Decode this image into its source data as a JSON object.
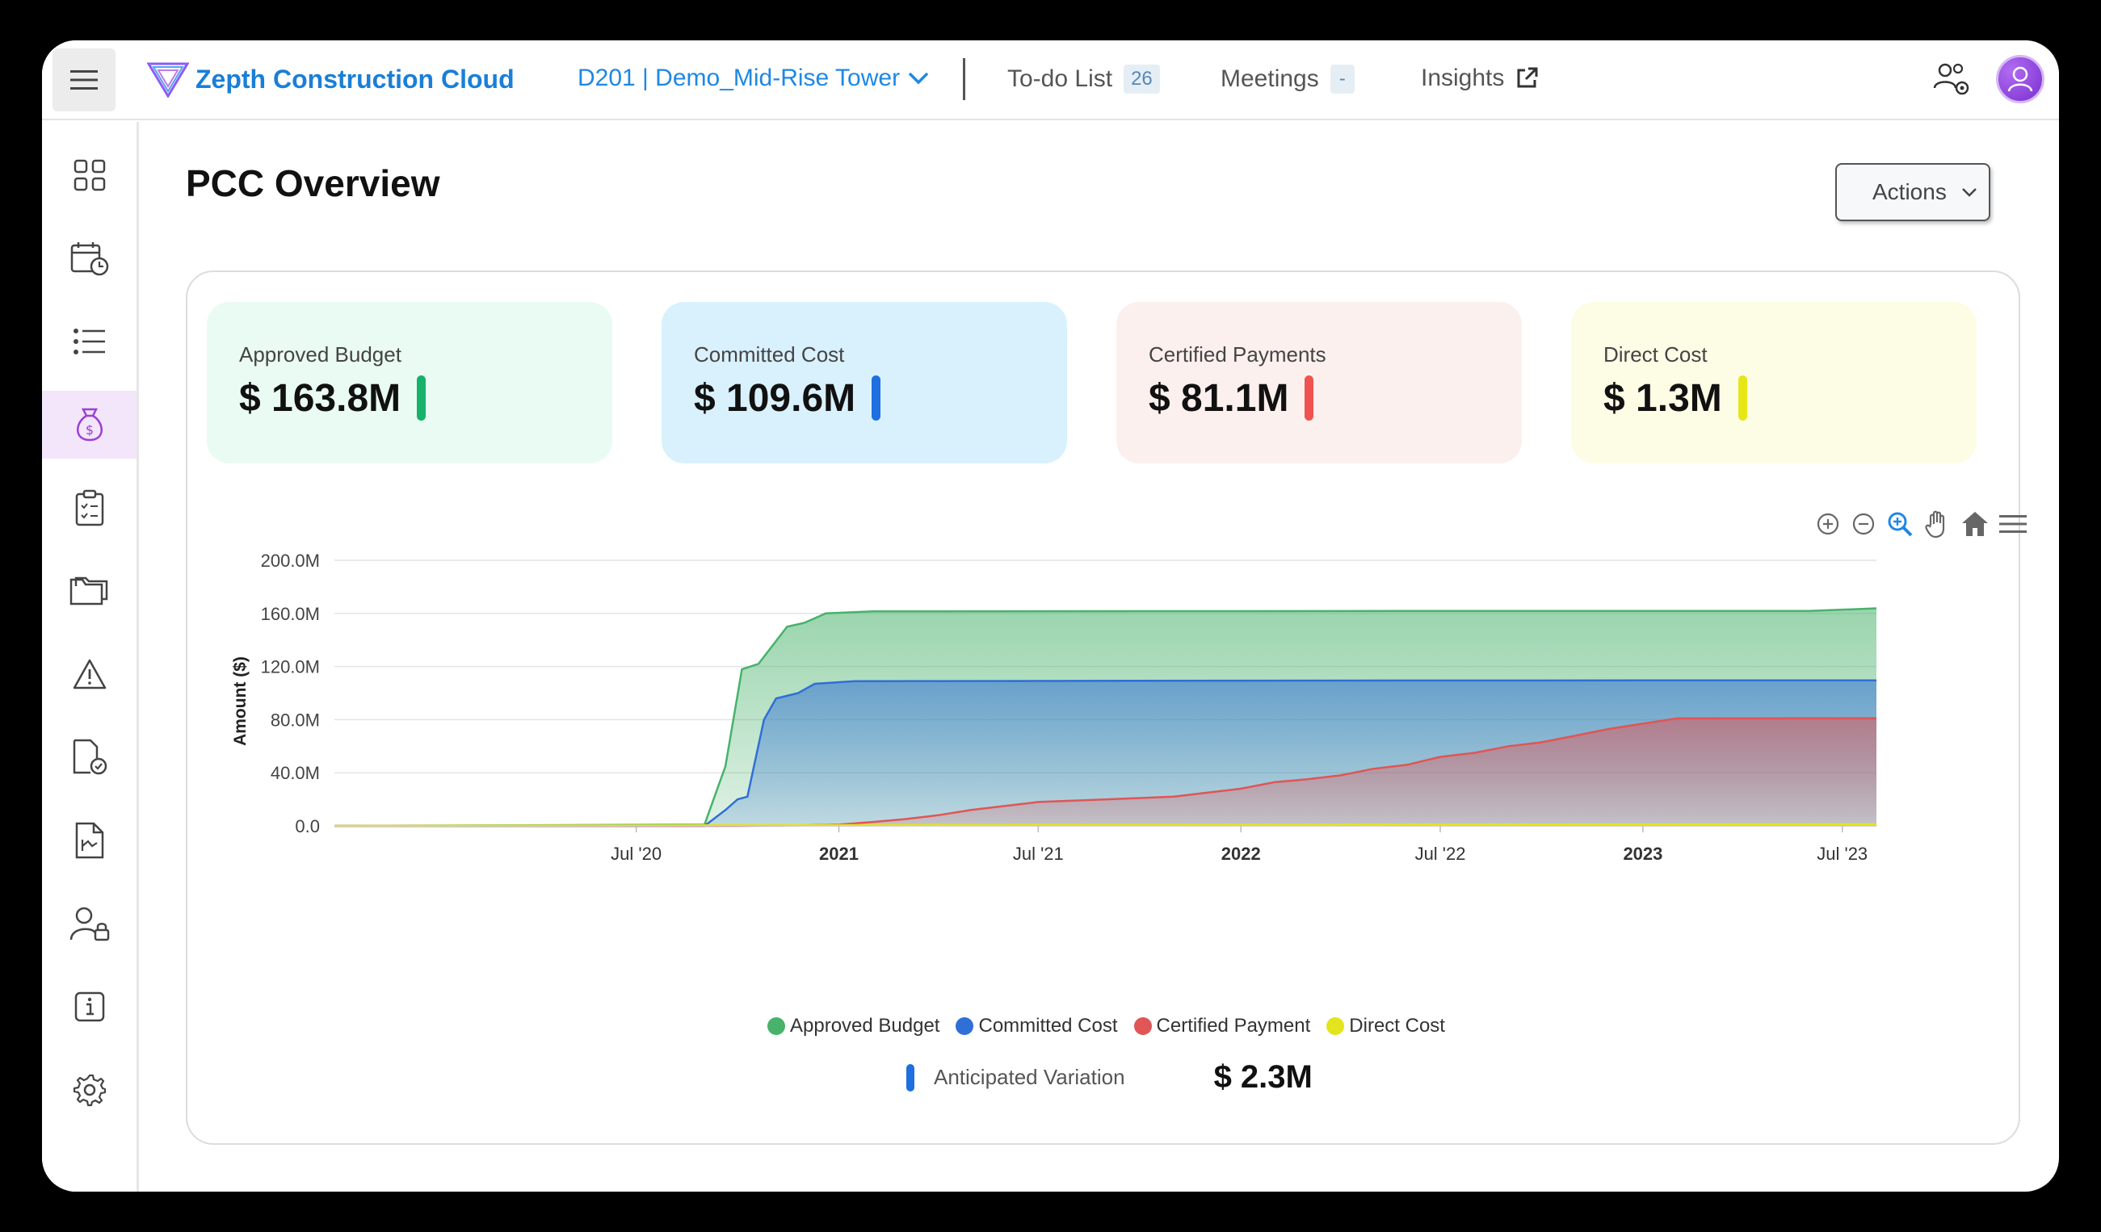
{
  "header": {
    "app_title": "Zepth Construction Cloud",
    "project": "D201 | Demo_Mid-Rise Tower",
    "nav": [
      {
        "label": "To-do List",
        "badge": "26"
      },
      {
        "label": "Meetings",
        "badge": "-"
      },
      {
        "label": "Insights"
      }
    ]
  },
  "sidebar": {
    "items": [
      {
        "icon": "grid-icon"
      },
      {
        "icon": "calendar-clock-icon"
      },
      {
        "icon": "list-icon"
      },
      {
        "icon": "money-bag-icon",
        "active": true
      },
      {
        "icon": "clipboard-check-icon"
      },
      {
        "icon": "folder-icon"
      },
      {
        "icon": "warning-icon"
      },
      {
        "icon": "document-check-icon"
      },
      {
        "icon": "document-chart-icon"
      },
      {
        "icon": "user-lock-icon"
      },
      {
        "icon": "info-icon"
      },
      {
        "icon": "settings-icon"
      }
    ]
  },
  "page": {
    "title": "PCC Overview",
    "actions_label": "Actions"
  },
  "kpis": [
    {
      "label": "Approved Budget",
      "value": "$ 163.8M",
      "bg": "#eafbf3",
      "accent": "#17b26a"
    },
    {
      "label": "Committed Cost",
      "value": "$ 109.6M",
      "bg": "#d9f1fd",
      "accent": "#1e6fe0"
    },
    {
      "label": "Certified Payments",
      "value": "$ 81.1M",
      "bg": "#fcf0ee",
      "accent": "#ef5350"
    },
    {
      "label": "Direct Cost",
      "value": "$ 1.3M",
      "bg": "#fdfde6",
      "accent": "#e6e619"
    }
  ],
  "chart_data": {
    "type": "area",
    "ylabel": "Amount ($)",
    "y_ticks": [
      "0.0",
      "40.0M",
      "80.0M",
      "120.0M",
      "160.0M",
      "200.0M"
    ],
    "ylim": [
      0,
      200
    ],
    "x_domain": [
      "2019-10-01",
      "2023-08-01"
    ],
    "x_ticks": [
      {
        "label": "Jul '20",
        "date": "2020-07-01",
        "bold": false
      },
      {
        "label": "2021",
        "date": "2021-01-01",
        "bold": true
      },
      {
        "label": "Jul '21",
        "date": "2021-07-01",
        "bold": false
      },
      {
        "label": "2022",
        "date": "2022-01-01",
        "bold": true
      },
      {
        "label": "Jul '22",
        "date": "2022-07-01",
        "bold": false
      },
      {
        "label": "2023",
        "date": "2023-01-01",
        "bold": true
      },
      {
        "label": "Jul '23",
        "date": "2023-07-01",
        "bold": false
      }
    ],
    "series": [
      {
        "name": "Approved Budget",
        "color": "#48b26b",
        "points": [
          [
            "2019-10-01",
            0
          ],
          [
            "2020-09-01",
            1
          ],
          [
            "2020-09-20",
            45
          ],
          [
            "2020-10-05",
            118
          ],
          [
            "2020-10-20",
            122
          ],
          [
            "2020-11-15",
            150
          ],
          [
            "2020-12-01",
            153
          ],
          [
            "2020-12-20",
            160
          ],
          [
            "2021-02-01",
            161.5
          ],
          [
            "2022-06-01",
            161.8
          ],
          [
            "2023-06-01",
            161.8
          ],
          [
            "2023-08-01",
            163.8
          ]
        ]
      },
      {
        "name": "Committed Cost",
        "color": "#2f6fd6",
        "points": [
          [
            "2019-10-01",
            0
          ],
          [
            "2020-09-01",
            0
          ],
          [
            "2020-09-20",
            12
          ],
          [
            "2020-10-01",
            20
          ],
          [
            "2020-10-10",
            22
          ],
          [
            "2020-10-25",
            80
          ],
          [
            "2020-11-05",
            96
          ],
          [
            "2020-11-25",
            100
          ],
          [
            "2020-12-10",
            107
          ],
          [
            "2021-01-15",
            109
          ],
          [
            "2022-06-01",
            109.5
          ],
          [
            "2023-08-01",
            109.6
          ]
        ]
      },
      {
        "name": "Certified Payment",
        "color": "#e05555",
        "points": [
          [
            "2019-10-01",
            0
          ],
          [
            "2020-10-01",
            0
          ],
          [
            "2020-12-01",
            0.5
          ],
          [
            "2021-01-01",
            1
          ],
          [
            "2021-02-01",
            3
          ],
          [
            "2021-03-01",
            5
          ],
          [
            "2021-04-01",
            8
          ],
          [
            "2021-05-01",
            12
          ],
          [
            "2021-06-01",
            15
          ],
          [
            "2021-07-01",
            18
          ],
          [
            "2021-08-01",
            19
          ],
          [
            "2021-09-01",
            20
          ],
          [
            "2021-10-01",
            21
          ],
          [
            "2021-11-01",
            22
          ],
          [
            "2021-12-01",
            25
          ],
          [
            "2022-01-01",
            28
          ],
          [
            "2022-02-01",
            33
          ],
          [
            "2022-03-01",
            35
          ],
          [
            "2022-04-01",
            38
          ],
          [
            "2022-05-01",
            43
          ],
          [
            "2022-06-01",
            46
          ],
          [
            "2022-07-01",
            52
          ],
          [
            "2022-08-01",
            55
          ],
          [
            "2022-09-01",
            60
          ],
          [
            "2022-10-01",
            63
          ],
          [
            "2022-11-01",
            68
          ],
          [
            "2022-12-01",
            73
          ],
          [
            "2023-01-01",
            77
          ],
          [
            "2023-02-01",
            81
          ],
          [
            "2023-08-01",
            81.1
          ]
        ]
      },
      {
        "name": "Direct Cost",
        "color": "#e3e31e",
        "points": [
          [
            "2019-10-01",
            0
          ],
          [
            "2020-06-01",
            0.3
          ],
          [
            "2021-06-01",
            0.8
          ],
          [
            "2022-06-01",
            1.0
          ],
          [
            "2023-08-01",
            1.3
          ]
        ]
      }
    ]
  },
  "anticipated_variation": {
    "label": "Anticipated Variation",
    "value": "$ 2.3M"
  }
}
